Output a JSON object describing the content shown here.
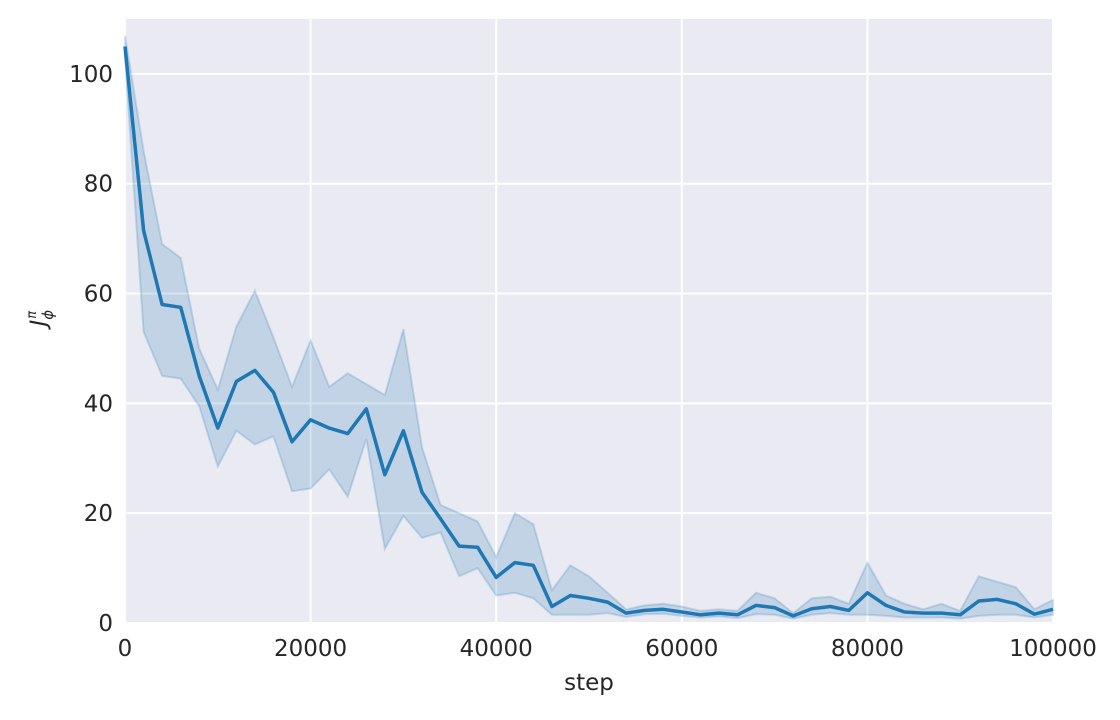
{
  "chart_data": {
    "type": "line",
    "title": "",
    "xlabel": "step",
    "ylabel_base": "J",
    "ylabel_sup": "π",
    "ylabel_sub": "ϕ",
    "xlim": [
      0,
      100000
    ],
    "ylim": [
      0,
      110
    ],
    "xticks": [
      0,
      20000,
      40000,
      60000,
      80000,
      100000
    ],
    "xtick_labels": [
      "0",
      "20000",
      "40000",
      "60000",
      "80000",
      "100000"
    ],
    "yticks": [
      0,
      20,
      40,
      60,
      80,
      100
    ],
    "ytick_labels": [
      "0",
      "20",
      "40",
      "60",
      "80",
      "100"
    ],
    "grid": true,
    "colors": {
      "background": "#EAEAF2",
      "grid": "#FFFFFF",
      "line": "#1F77B4",
      "band": "#1F77B4"
    },
    "series": [
      {
        "x": [
          0,
          2000,
          4000,
          6000,
          8000,
          10000,
          12000,
          14000,
          16000,
          18000,
          20000,
          22000,
          24000,
          26000,
          28000,
          30000,
          32000,
          34000,
          36000,
          38000,
          40000,
          42000,
          44000,
          46000,
          48000,
          50000,
          52000,
          54000,
          56000,
          58000,
          60000,
          62000,
          64000,
          66000,
          68000,
          70000,
          72000,
          74000,
          76000,
          78000,
          80000,
          82000,
          84000,
          86000,
          88000,
          90000,
          92000,
          94000,
          96000,
          98000,
          100000
        ],
        "y": [
          105,
          71.5,
          58,
          57.5,
          45,
          35.5,
          44,
          46,
          42,
          33,
          37,
          35.5,
          34.5,
          39,
          27,
          35,
          23.8,
          19,
          14,
          13.8,
          8.3,
          11,
          10.5,
          3,
          5,
          4.5,
          3.8,
          1.8,
          2.3,
          2.5,
          2,
          1.5,
          1.8,
          1.5,
          3.2,
          2.8,
          1.3,
          2.6,
          3,
          2.3,
          5.5,
          3.2,
          2,
          1.8,
          1.8,
          1.5,
          4,
          4.3,
          3.5,
          1.6,
          2.5
        ],
        "lower": [
          103,
          53,
          45,
          44.5,
          39.5,
          28.5,
          35,
          32.5,
          34,
          24,
          24.5,
          28,
          23,
          33.5,
          13.5,
          19.5,
          15.5,
          16.5,
          8.5,
          10,
          5,
          5.5,
          4.5,
          1.5,
          1.5,
          1.5,
          1.8,
          1.1,
          1.6,
          1.7,
          1.3,
          1,
          1.2,
          0.9,
          1.6,
          1.5,
          0.8,
          1.5,
          1.8,
          1.5,
          1.5,
          1.3,
          1,
          1,
          1,
          0.8,
          1.3,
          1.5,
          1.5,
          1,
          1.5
        ],
        "upper": [
          107,
          86,
          69,
          66.5,
          50,
          42.5,
          54,
          60.5,
          52,
          43,
          51.5,
          43,
          45.5,
          43.5,
          41.5,
          53.5,
          32,
          21.5,
          20,
          18.5,
          12,
          20,
          18,
          6,
          10.5,
          8.5,
          5.5,
          2.5,
          3.2,
          3.5,
          3,
          2.2,
          2.5,
          2.2,
          5.5,
          4.5,
          1.8,
          4.5,
          4.8,
          3.5,
          11,
          5,
          3.5,
          2.5,
          3.5,
          2.2,
          8.5,
          7.5,
          6.5,
          2.5,
          4.2
        ]
      }
    ]
  }
}
